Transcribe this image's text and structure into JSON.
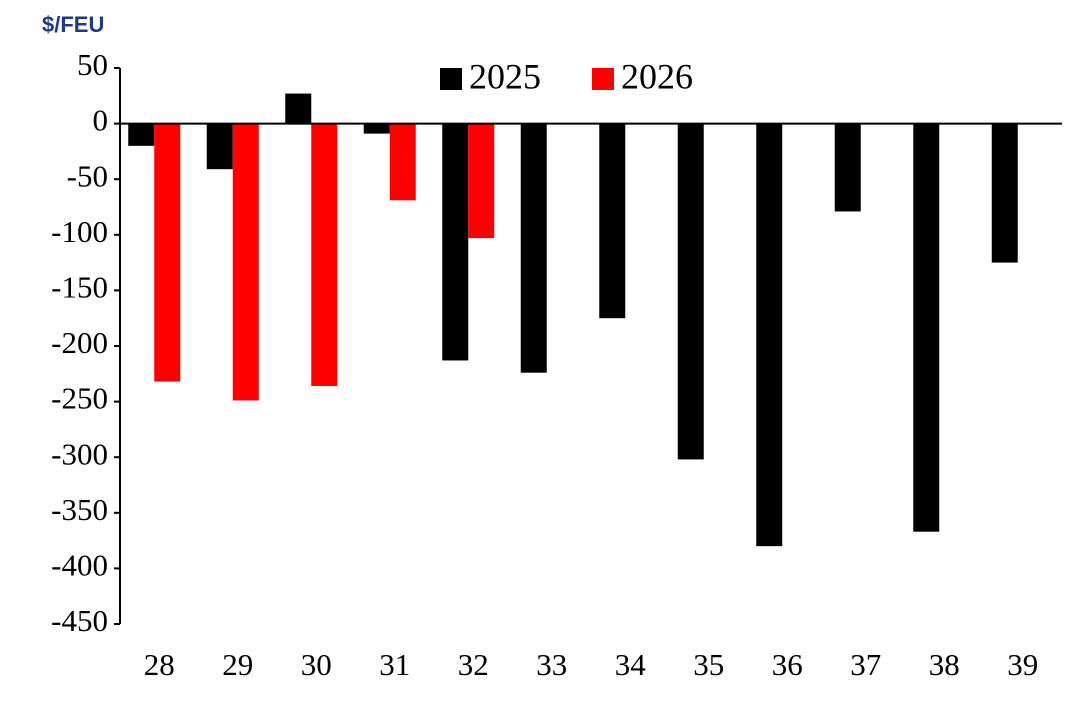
{
  "chart_data": {
    "type": "bar",
    "y_label": "$/FEU",
    "categories": [
      "28",
      "29",
      "30",
      "31",
      "32",
      "33",
      "34",
      "35",
      "36",
      "37",
      "38",
      "39"
    ],
    "series": [
      {
        "name": "2025",
        "color": "#000000",
        "values": [
          -20,
          -41,
          27,
          -9,
          -213,
          -224,
          -175,
          -302,
          -380,
          -79,
          -367,
          -125
        ]
      },
      {
        "name": "2026",
        "color": "#ff0000",
        "values": [
          -232,
          -249,
          -236,
          -69,
          -103,
          null,
          null,
          null,
          null,
          null,
          null,
          null
        ]
      }
    ],
    "ylim": [
      -450,
      50
    ],
    "yticks": [
      50,
      0,
      -50,
      -100,
      -150,
      -200,
      -250,
      -300,
      -350,
      -400,
      -450
    ],
    "grid": false
  }
}
